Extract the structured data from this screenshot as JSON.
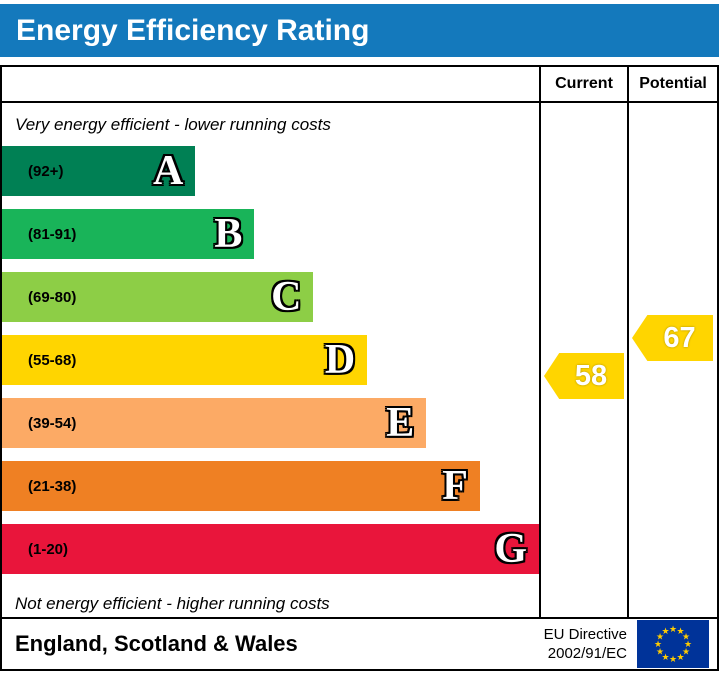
{
  "title": "Energy Efficiency Rating",
  "colors": {
    "banner_blue": "#1479bc",
    "arrow_yellow": "#ffd500",
    "eu_flag_blue": "#003399",
    "eu_star_yellow": "#ffcc00"
  },
  "table": {
    "current_header": "Current",
    "potential_header": "Potential"
  },
  "notes": {
    "top": "Very energy efficient - lower running costs",
    "bottom": "Not energy efficient - higher running costs"
  },
  "bands": [
    {
      "letter": "A",
      "range": "(92+)",
      "color": "#008054",
      "width_pct": 36
    },
    {
      "letter": "B",
      "range": "(81-91)",
      "color": "#19b459",
      "width_pct": 47
    },
    {
      "letter": "C",
      "range": "(69-80)",
      "color": "#8dce46",
      "width_pct": 58
    },
    {
      "letter": "D",
      "range": "(55-68)",
      "color": "#ffd500",
      "width_pct": 68
    },
    {
      "letter": "E",
      "range": "(39-54)",
      "color": "#fcaa65",
      "width_pct": 79
    },
    {
      "letter": "F",
      "range": "(21-38)",
      "color": "#ef8023",
      "width_pct": 89
    },
    {
      "letter": "G",
      "range": "(1-20)",
      "color": "#e9153b",
      "width_pct": 100
    }
  ],
  "current": {
    "value": "58",
    "color": "#ffd500",
    "band": "D"
  },
  "potential": {
    "value": "67",
    "color": "#ffd500",
    "band": "D"
  },
  "footer": {
    "region": "England, Scotland & Wales",
    "directive_line1": "EU Directive",
    "directive_line2": "2002/91/EC"
  },
  "chart_data": {
    "type": "bar",
    "title": "Energy Efficiency Rating",
    "categories": [
      "A",
      "B",
      "C",
      "D",
      "E",
      "F",
      "G"
    ],
    "band_ranges": [
      "92+",
      "81-91",
      "69-80",
      "55-68",
      "39-54",
      "21-38",
      "1-20"
    ],
    "band_colors": [
      "#008054",
      "#19b459",
      "#8dce46",
      "#ffd500",
      "#fcaa65",
      "#ef8023",
      "#e9153b"
    ],
    "values": [
      36,
      47,
      58,
      68,
      79,
      89,
      100
    ],
    "markers": [
      {
        "name": "Current",
        "value": 58,
        "band": "D",
        "color": "#ffd500"
      },
      {
        "name": "Potential",
        "value": 67,
        "band": "D",
        "color": "#ffd500"
      }
    ],
    "annotations": [
      "Very energy efficient - lower running costs",
      "Not energy efficient - higher running costs"
    ],
    "footer_text": [
      "England, Scotland & Wales",
      "EU Directive 2002/91/EC"
    ]
  }
}
